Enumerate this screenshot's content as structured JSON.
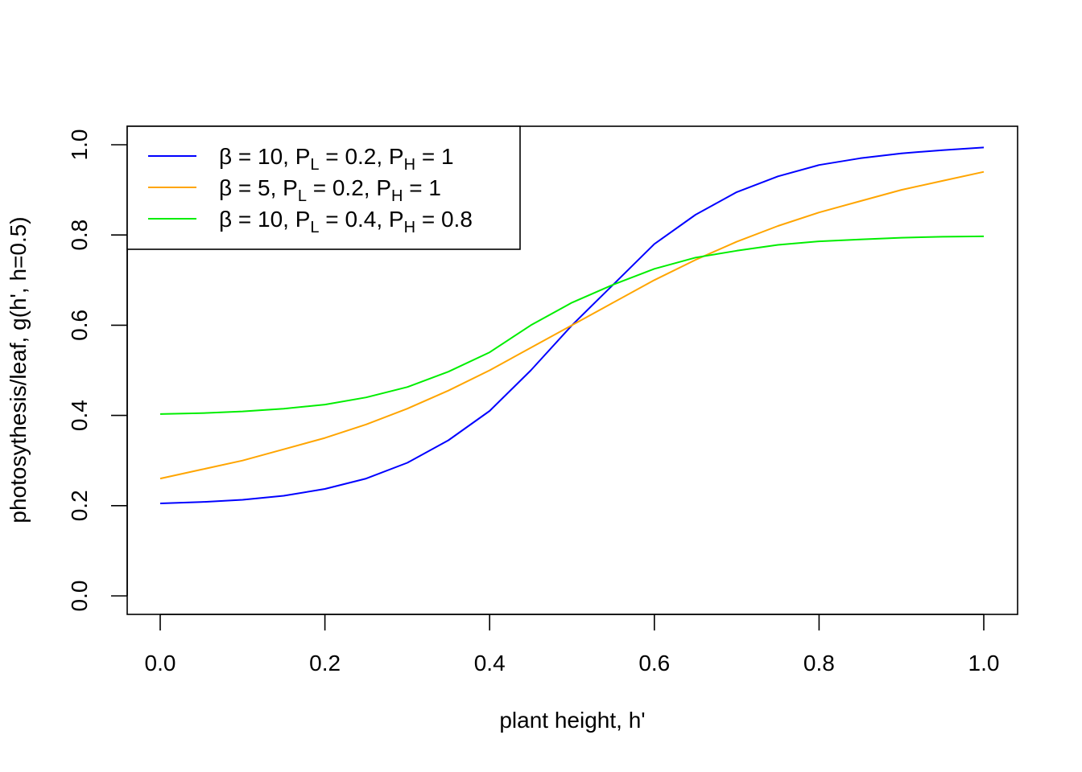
{
  "chart_data": {
    "type": "line",
    "title": "",
    "xlabel": "plant height, h'",
    "ylabel": "photosythesis/leaf, g(h', h=0.5)",
    "xlim": [
      0.0,
      1.0
    ],
    "ylim": [
      0.0,
      1.0
    ],
    "x_ticks": [
      "0.0",
      "0.2",
      "0.4",
      "0.6",
      "0.8",
      "1.0"
    ],
    "y_ticks": [
      "0.0",
      "0.2",
      "0.4",
      "0.6",
      "0.8",
      "1.0"
    ],
    "grid": false,
    "legend_position": "top-left",
    "x": [
      0.0,
      0.05,
      0.1,
      0.15,
      0.2,
      0.25,
      0.3,
      0.35,
      0.4,
      0.45,
      0.5,
      0.55,
      0.6,
      0.65,
      0.7,
      0.75,
      0.8,
      0.85,
      0.9,
      0.95,
      1.0
    ],
    "series": [
      {
        "legend": {
          "beta": "β = 10, P",
          "l_sub": "L",
          "mid": " = 0.2, P",
          "h_sub": "H",
          "end": " = 1"
        },
        "color": "#0000ff",
        "values": [
          0.205,
          0.208,
          0.213,
          0.222,
          0.237,
          0.26,
          0.295,
          0.345,
          0.41,
          0.5,
          0.6,
          0.69,
          0.78,
          0.845,
          0.895,
          0.93,
          0.955,
          0.97,
          0.981,
          0.988,
          0.994
        ]
      },
      {
        "legend": {
          "beta": "β = 5, P",
          "l_sub": "L",
          "mid": " = 0.2, P",
          "h_sub": "H",
          "end": " = 1"
        },
        "color": "#ffa500",
        "values": [
          0.26,
          0.28,
          0.3,
          0.325,
          0.35,
          0.38,
          0.415,
          0.455,
          0.5,
          0.55,
          0.6,
          0.65,
          0.7,
          0.745,
          0.785,
          0.82,
          0.85,
          0.875,
          0.9,
          0.92,
          0.94
        ]
      },
      {
        "legend": {
          "beta": "β = 10, P",
          "l_sub": "L",
          "mid": " = 0.4, P",
          "h_sub": "H",
          "end": " = 0.8"
        },
        "color": "#00ee00",
        "values": [
          0.403,
          0.405,
          0.409,
          0.415,
          0.424,
          0.44,
          0.463,
          0.497,
          0.54,
          0.6,
          0.65,
          0.69,
          0.725,
          0.75,
          0.765,
          0.778,
          0.786,
          0.79,
          0.794,
          0.796,
          0.797
        ]
      }
    ]
  }
}
